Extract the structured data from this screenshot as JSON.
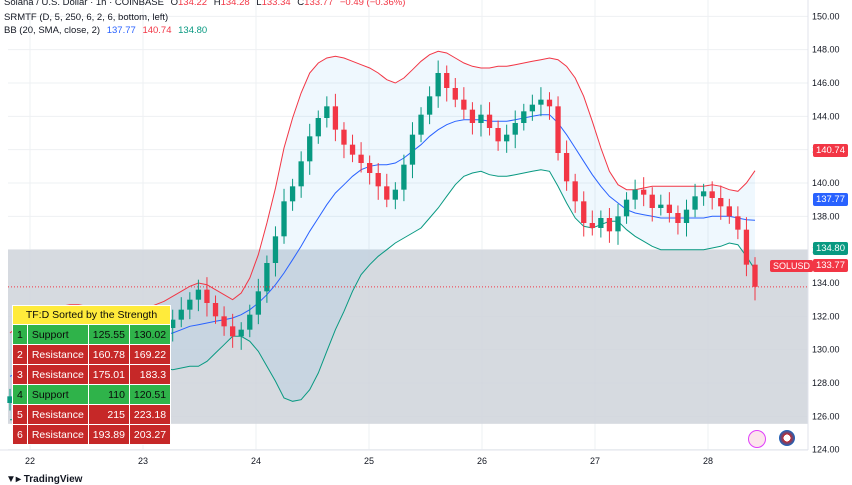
{
  "header": {
    "title": "Solana / U.S. Dollar · 1h · COINBASE",
    "o_label": "O",
    "o": "134.22",
    "h_label": "H",
    "h": "134.28",
    "l_label": "L",
    "l": "133.34",
    "c_label": "C",
    "c": "133.77",
    "change": "−0.49 (−0.36%)",
    "srmtf": "SRMTF (D, 5, 250, 6, 2, 6, bottom, left)",
    "bb": "BB (20, SMA, close, 2)",
    "bb_mid": "137.77",
    "bb_upper": "140.74",
    "bb_lower": "134.80"
  },
  "table": {
    "title": "TF:D Sorted by the Strength",
    "rows": [
      {
        "n": "1",
        "type": "Support",
        "low": "125.55",
        "high": "130.02"
      },
      {
        "n": "2",
        "type": "Resistance",
        "low": "160.78",
        "high": "169.22"
      },
      {
        "n": "3",
        "type": "Resistance",
        "low": "175.01",
        "high": "183.3"
      },
      {
        "n": "4",
        "type": "Support",
        "low": "110",
        "high": "120.51"
      },
      {
        "n": "5",
        "type": "Resistance",
        "low": "215",
        "high": "223.18"
      },
      {
        "n": "6",
        "type": "Resistance",
        "low": "193.89",
        "high": "203.27"
      }
    ]
  },
  "badges": {
    "upper": "140.74",
    "mid": "137.77",
    "lower": "134.80",
    "last": "133.77",
    "symbol": "SOLUSD"
  },
  "colors": {
    "up": "#089981",
    "down": "#f23645",
    "bb_mid": "#2962ff",
    "bb_upper": "#f23645",
    "bb_lower": "#089981",
    "zone": "#cfd3da"
  },
  "brand": "TradingView",
  "chart_data": {
    "type": "candlestick",
    "title": "Solana / U.S. Dollar · 1h · COINBASE",
    "ylim": [
      123.5,
      150.5
    ],
    "y_ticks": [
      "124.00",
      "126.00",
      "128.00",
      "130.00",
      "132.00",
      "134.00",
      "136.00",
      "138.00",
      "140.00",
      "142.00",
      "144.00",
      "146.00",
      "148.00",
      "150.00"
    ],
    "x_ticks": [
      "22",
      "23",
      "24",
      "25",
      "26",
      "27",
      "28"
    ],
    "support_zone": [
      125.55,
      136.0
    ],
    "last_price": 133.77,
    "close": [
      127.2,
      128.0,
      128.6,
      129.1,
      129.5,
      129.8,
      130.1,
      130.3,
      130.2,
      129.9,
      129.6,
      129.1,
      128.8,
      129.0,
      129.5,
      130.1,
      130.6,
      130.9,
      131.3,
      131.8,
      132.4,
      133.0,
      133.6,
      132.8,
      132.0,
      131.4,
      130.8,
      131.2,
      132.1,
      133.5,
      135.2,
      136.8,
      138.9,
      139.8,
      141.3,
      142.8,
      143.9,
      144.6,
      143.2,
      142.3,
      141.7,
      141.2,
      140.6,
      139.8,
      139.0,
      139.6,
      141.1,
      142.9,
      144.1,
      145.2,
      146.6,
      145.7,
      145.0,
      144.4,
      143.6,
      144.1,
      143.3,
      142.5,
      142.9,
      143.6,
      144.3,
      144.7,
      145.0,
      144.6,
      141.8,
      140.1,
      138.9,
      137.6,
      137.3,
      137.9,
      137.1,
      138.0,
      139.0,
      139.6,
      139.3,
      138.5,
      138.7,
      138.2,
      137.6,
      138.4,
      139.2,
      139.5,
      139.1,
      138.6,
      138.0,
      137.2,
      135.1,
      133.77
    ],
    "bb_mid": [
      128.4,
      128.6,
      128.8,
      129.0,
      129.2,
      129.4,
      129.6,
      129.8,
      129.9,
      130.0,
      130.1,
      130.2,
      130.3,
      130.4,
      130.5,
      130.6,
      130.7,
      130.8,
      130.9,
      131.0,
      131.2,
      131.4,
      131.5,
      131.6,
      131.7,
      131.8,
      131.9,
      132.1,
      132.4,
      132.8,
      133.3,
      133.9,
      134.6,
      135.4,
      136.2,
      137.1,
      137.9,
      138.7,
      139.4,
      139.9,
      140.4,
      140.8,
      141.0,
      141.1,
      141.1,
      141.2,
      141.5,
      141.9,
      142.3,
      142.8,
      143.2,
      143.5,
      143.7,
      143.8,
      143.8,
      143.8,
      143.7,
      143.7,
      143.7,
      143.8,
      143.9,
      144.0,
      144.1,
      144.1,
      143.6,
      142.9,
      142.1,
      141.3,
      140.5,
      139.8,
      139.2,
      138.8,
      138.4,
      138.2,
      138.1,
      138.0,
      137.9,
      137.9,
      137.9,
      137.9,
      137.9,
      137.9,
      138.0,
      138.0,
      138.0,
      137.9,
      137.8,
      137.77
    ],
    "bb_upper": [
      131.0,
      131.4,
      131.8,
      132.1,
      132.3,
      132.5,
      132.6,
      132.7,
      132.7,
      132.6,
      132.5,
      132.4,
      132.3,
      132.3,
      132.3,
      132.4,
      132.5,
      132.7,
      132.9,
      133.2,
      133.5,
      133.8,
      134.0,
      133.9,
      133.6,
      133.3,
      133.0,
      133.4,
      134.3,
      135.7,
      137.6,
      139.7,
      142.1,
      143.9,
      145.4,
      146.6,
      147.2,
      147.5,
      147.6,
      147.5,
      147.3,
      147.1,
      146.9,
      146.6,
      146.2,
      146.0,
      146.3,
      146.8,
      147.3,
      147.7,
      147.9,
      147.8,
      147.5,
      147.2,
      147.0,
      146.9,
      146.9,
      147.0,
      147.0,
      147.1,
      147.2,
      147.3,
      147.4,
      147.5,
      147.4,
      147.0,
      146.3,
      145.2,
      143.7,
      142.1,
      140.7,
      139.9,
      139.6,
      139.6,
      139.7,
      139.8,
      139.8,
      139.8,
      139.8,
      139.8,
      139.8,
      139.8,
      139.9,
      139.8,
      139.6,
      139.5,
      140.0,
      140.74
    ],
    "bb_lower": [
      125.8,
      125.8,
      125.8,
      125.9,
      126.1,
      126.3,
      126.6,
      126.9,
      127.1,
      127.4,
      127.7,
      128.0,
      128.3,
      128.5,
      128.7,
      128.8,
      128.9,
      128.9,
      128.9,
      128.8,
      128.9,
      129.0,
      129.0,
      129.3,
      129.8,
      130.3,
      130.8,
      130.8,
      130.5,
      129.9,
      129.0,
      128.1,
      127.1,
      126.9,
      127.0,
      127.6,
      128.6,
      129.9,
      131.2,
      132.3,
      133.5,
      134.5,
      135.1,
      135.6,
      136.0,
      136.4,
      136.7,
      137.0,
      137.3,
      137.9,
      138.5,
      139.2,
      139.9,
      140.4,
      140.6,
      140.7,
      140.5,
      140.4,
      140.4,
      140.5,
      140.6,
      140.7,
      140.8,
      140.7,
      139.8,
      138.8,
      137.9,
      137.4,
      137.3,
      137.5,
      137.7,
      137.7,
      137.2,
      136.8,
      136.5,
      136.2,
      136.0,
      136.0,
      136.0,
      136.0,
      136.0,
      136.0,
      136.1,
      136.2,
      136.4,
      136.3,
      135.6,
      134.8
    ]
  }
}
